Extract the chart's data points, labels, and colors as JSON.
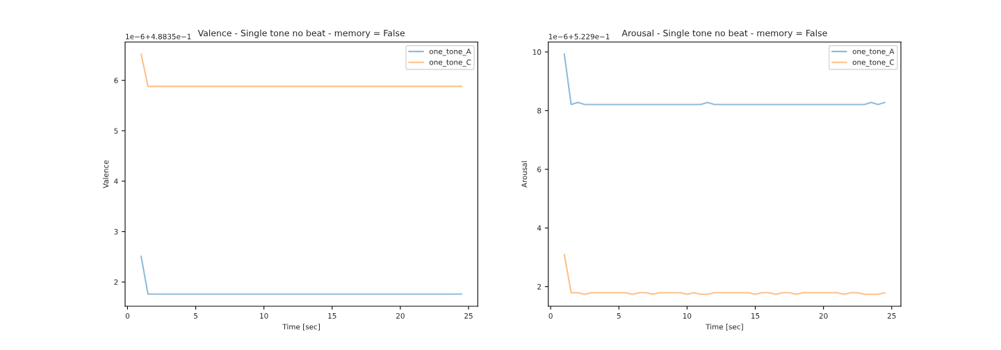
{
  "chart_data": [
    {
      "type": "line",
      "title": "Valence - Single tone no beat - memory = False",
      "xlabel": "Time [sec]",
      "ylabel": "Valence",
      "annotations": [
        "1e−6+4.8835e−1"
      ],
      "x": [
        1,
        1.5,
        2,
        2.5,
        3,
        3.5,
        4,
        4.5,
        5,
        5.5,
        6,
        6.5,
        7,
        7.5,
        8,
        8.5,
        9,
        9.5,
        10,
        10.5,
        11,
        11.5,
        12,
        12.5,
        13,
        13.5,
        14,
        14.5,
        15,
        15.5,
        16,
        16.5,
        17,
        17.5,
        18,
        18.5,
        19,
        19.5,
        20,
        20.5,
        21,
        21.5,
        22,
        22.5,
        23,
        23.5,
        24,
        24.5
      ],
      "series": [
        {
          "name": "one_tone_A",
          "color": "#8fbbd9",
          "values": [
            2.51,
            1.76,
            1.76,
            1.76,
            1.76,
            1.76,
            1.76,
            1.76,
            1.76,
            1.76,
            1.76,
            1.76,
            1.76,
            1.76,
            1.76,
            1.76,
            1.76,
            1.76,
            1.76,
            1.76,
            1.76,
            1.76,
            1.76,
            1.76,
            1.76,
            1.76,
            1.76,
            1.76,
            1.76,
            1.76,
            1.76,
            1.76,
            1.76,
            1.76,
            1.76,
            1.76,
            1.76,
            1.76,
            1.76,
            1.76,
            1.76,
            1.76,
            1.76,
            1.76,
            1.76,
            1.76,
            1.76,
            1.76
          ]
        },
        {
          "name": "one_tone_C",
          "color": "#ffbf86",
          "values": [
            6.52,
            5.88,
            5.88,
            5.88,
            5.88,
            5.88,
            5.88,
            5.88,
            5.88,
            5.88,
            5.88,
            5.88,
            5.88,
            5.88,
            5.88,
            5.88,
            5.88,
            5.88,
            5.88,
            5.88,
            5.88,
            5.88,
            5.88,
            5.88,
            5.88,
            5.88,
            5.88,
            5.88,
            5.88,
            5.88,
            5.88,
            5.88,
            5.88,
            5.88,
            5.88,
            5.88,
            5.88,
            5.88,
            5.88,
            5.88,
            5.88,
            5.88,
            5.88,
            5.88,
            5.88,
            5.88,
            5.88,
            5.88
          ]
        }
      ],
      "xlim": [
        -0.175,
        25.675
      ],
      "xticks": [
        0,
        5,
        10,
        15,
        20,
        25
      ],
      "ylim": [
        1.52,
        6.76
      ],
      "yticks": [
        2,
        3,
        4,
        5,
        6
      ],
      "legend": "top right",
      "grid": false
    },
    {
      "type": "line",
      "title": "Arousal - Single tone no beat - memory = False",
      "xlabel": "Time [sec]",
      "ylabel": "Arousal",
      "annotations": [
        "1e−6+5.229e−1"
      ],
      "x": [
        1,
        1.5,
        2,
        2.5,
        3,
        3.5,
        4,
        4.5,
        5,
        5.5,
        6,
        6.5,
        7,
        7.5,
        8,
        8.5,
        9,
        9.5,
        10,
        10.5,
        11,
        11.5,
        12,
        12.5,
        13,
        13.5,
        14,
        14.5,
        15,
        15.5,
        16,
        16.5,
        17,
        17.5,
        18,
        18.5,
        19,
        19.5,
        20,
        20.5,
        21,
        21.5,
        22,
        22.5,
        23,
        23.5,
        24,
        24.5
      ],
      "series": [
        {
          "name": "one_tone_A",
          "color": "#8fbbd9",
          "values": [
            9.93,
            8.21,
            8.28,
            8.21,
            8.21,
            8.21,
            8.21,
            8.21,
            8.21,
            8.21,
            8.21,
            8.21,
            8.21,
            8.21,
            8.21,
            8.21,
            8.21,
            8.21,
            8.21,
            8.21,
            8.21,
            8.28,
            8.21,
            8.21,
            8.21,
            8.21,
            8.21,
            8.21,
            8.21,
            8.21,
            8.21,
            8.21,
            8.21,
            8.21,
            8.21,
            8.21,
            8.21,
            8.21,
            8.21,
            8.21,
            8.21,
            8.21,
            8.21,
            8.21,
            8.21,
            8.28,
            8.21,
            8.28
          ]
        },
        {
          "name": "one_tone_C",
          "color": "#ffbf86",
          "values": [
            3.1,
            1.79,
            1.79,
            1.74,
            1.79,
            1.79,
            1.79,
            1.79,
            1.79,
            1.79,
            1.74,
            1.79,
            1.79,
            1.74,
            1.79,
            1.79,
            1.79,
            1.79,
            1.74,
            1.79,
            1.74,
            1.74,
            1.79,
            1.79,
            1.79,
            1.79,
            1.79,
            1.79,
            1.74,
            1.79,
            1.79,
            1.74,
            1.79,
            1.79,
            1.74,
            1.79,
            1.79,
            1.79,
            1.79,
            1.79,
            1.79,
            1.74,
            1.79,
            1.79,
            1.74,
            1.74,
            1.74,
            1.79
          ]
        }
      ],
      "xlim": [
        -0.175,
        25.675
      ],
      "xticks": [
        0,
        5,
        10,
        15,
        20,
        25
      ],
      "ylim": [
        1.33,
        10.34
      ],
      "yticks": [
        2,
        4,
        6,
        8,
        10
      ],
      "legend": "top right",
      "grid": false
    }
  ]
}
